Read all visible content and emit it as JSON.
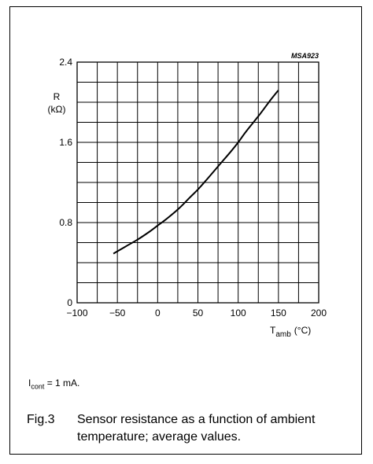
{
  "chart_data": {
    "type": "line",
    "code": "MSA923",
    "ylabel_line1": "R",
    "ylabel_line2": "(kΩ)",
    "xlabel_main": "T",
    "xlabel_sub": "amb",
    "xlabel_unit": "(°C)",
    "xlim": [
      -100,
      200
    ],
    "ylim": [
      0,
      2.4
    ],
    "x_ticks": [
      -100,
      -50,
      0,
      50,
      100,
      150,
      200
    ],
    "x_tick_labels": [
      "−100",
      "−50",
      "0",
      "50",
      "100",
      "150",
      "200"
    ],
    "y_ticks": [
      0,
      0.8,
      1.6,
      2.4
    ],
    "y_tick_labels": [
      "0",
      "0.8",
      "1.6",
      "2.4"
    ],
    "x_grid_step": 25,
    "y_grid_step": 0.2,
    "grid": true,
    "series": [
      {
        "x": [
          -55,
          -40,
          -25,
          -10,
          0,
          10,
          25,
          40,
          50,
          60,
          75,
          90,
          100,
          110,
          125,
          140,
          150
        ],
        "y": [
          0.49,
          0.56,
          0.63,
          0.71,
          0.77,
          0.83,
          0.93,
          1.05,
          1.13,
          1.22,
          1.36,
          1.5,
          1.6,
          1.71,
          1.86,
          2.02,
          2.12
        ]
      }
    ]
  },
  "note": {
    "symbol": "I",
    "subscript": "cont",
    "text": " = 1 mA."
  },
  "caption": {
    "number": "Fig.3",
    "text": "Sensor resistance as a function of ambient temperature; average values."
  }
}
